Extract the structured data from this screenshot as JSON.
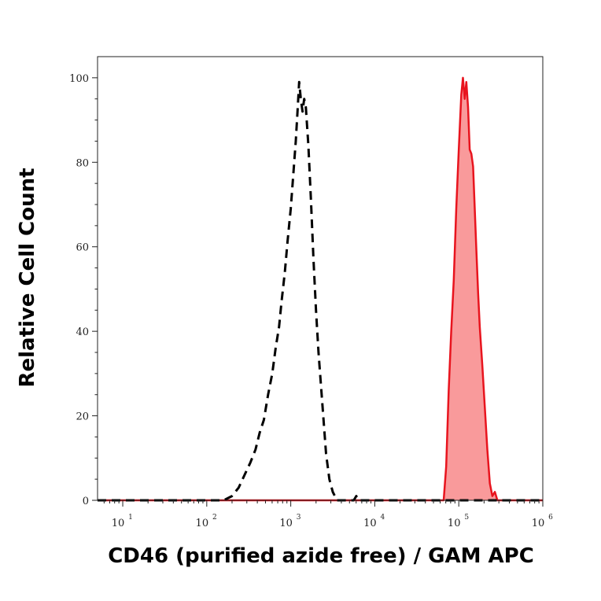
{
  "chart_data": {
    "type": "area",
    "xlabel": "CD46 (purified azide free) / GAM APC",
    "ylabel": "Relative Cell Count",
    "x_scale": "log10",
    "xlim_log10": [
      0.7,
      6
    ],
    "ylim": [
      0,
      105
    ],
    "x_tick_base": "10",
    "x_tick_exponents": [
      "1",
      "2",
      "3",
      "4",
      "5",
      "6"
    ],
    "y_ticks": [
      "0",
      "20",
      "40",
      "60",
      "80",
      "100"
    ],
    "series": [
      {
        "style": "dashed",
        "color": "#000000",
        "filled": false,
        "points_log10_x": [
          [
            0.7,
            0
          ],
          [
            2.2,
            0
          ],
          [
            2.3,
            1
          ],
          [
            2.38,
            3
          ],
          [
            2.45,
            6
          ],
          [
            2.52,
            9
          ],
          [
            2.58,
            12
          ],
          [
            2.63,
            16
          ],
          [
            2.68,
            19
          ],
          [
            2.73,
            25
          ],
          [
            2.78,
            30
          ],
          [
            2.82,
            36
          ],
          [
            2.86,
            41
          ],
          [
            2.89,
            47
          ],
          [
            2.93,
            54
          ],
          [
            2.96,
            61
          ],
          [
            3.0,
            69
          ],
          [
            3.03,
            77
          ],
          [
            3.06,
            85
          ],
          [
            3.08,
            92
          ],
          [
            3.1,
            99
          ],
          [
            3.12,
            95
          ],
          [
            3.14,
            92
          ],
          [
            3.16,
            95
          ],
          [
            3.18,
            93
          ],
          [
            3.21,
            84
          ],
          [
            3.24,
            71
          ],
          [
            3.27,
            57
          ],
          [
            3.3,
            45
          ],
          [
            3.33,
            35
          ],
          [
            3.36,
            27
          ],
          [
            3.39,
            19
          ],
          [
            3.42,
            11
          ],
          [
            3.46,
            5
          ],
          [
            3.5,
            2
          ],
          [
            3.55,
            0
          ],
          [
            3.75,
            0
          ],
          [
            3.78,
            1
          ],
          [
            3.81,
            0
          ],
          [
            6,
            0
          ]
        ]
      },
      {
        "style": "solid",
        "color": "#e8141e",
        "fill": "#f99a9b",
        "filled": true,
        "points_log10_x": [
          [
            0.7,
            0
          ],
          [
            4.82,
            0
          ],
          [
            4.85,
            8
          ],
          [
            4.88,
            26
          ],
          [
            4.91,
            40
          ],
          [
            4.94,
            52
          ],
          [
            4.97,
            69
          ],
          [
            5.0,
            83
          ],
          [
            5.03,
            96
          ],
          [
            5.05,
            100
          ],
          [
            5.07,
            95
          ],
          [
            5.09,
            99
          ],
          [
            5.11,
            93
          ],
          [
            5.13,
            83
          ],
          [
            5.15,
            82
          ],
          [
            5.17,
            79
          ],
          [
            5.19,
            69
          ],
          [
            5.21,
            59
          ],
          [
            5.23,
            49
          ],
          [
            5.25,
            41
          ],
          [
            5.28,
            32
          ],
          [
            5.31,
            22
          ],
          [
            5.34,
            12
          ],
          [
            5.37,
            4
          ],
          [
            5.4,
            1
          ],
          [
            5.43,
            2
          ],
          [
            5.46,
            0
          ],
          [
            6,
            0
          ]
        ]
      }
    ]
  }
}
